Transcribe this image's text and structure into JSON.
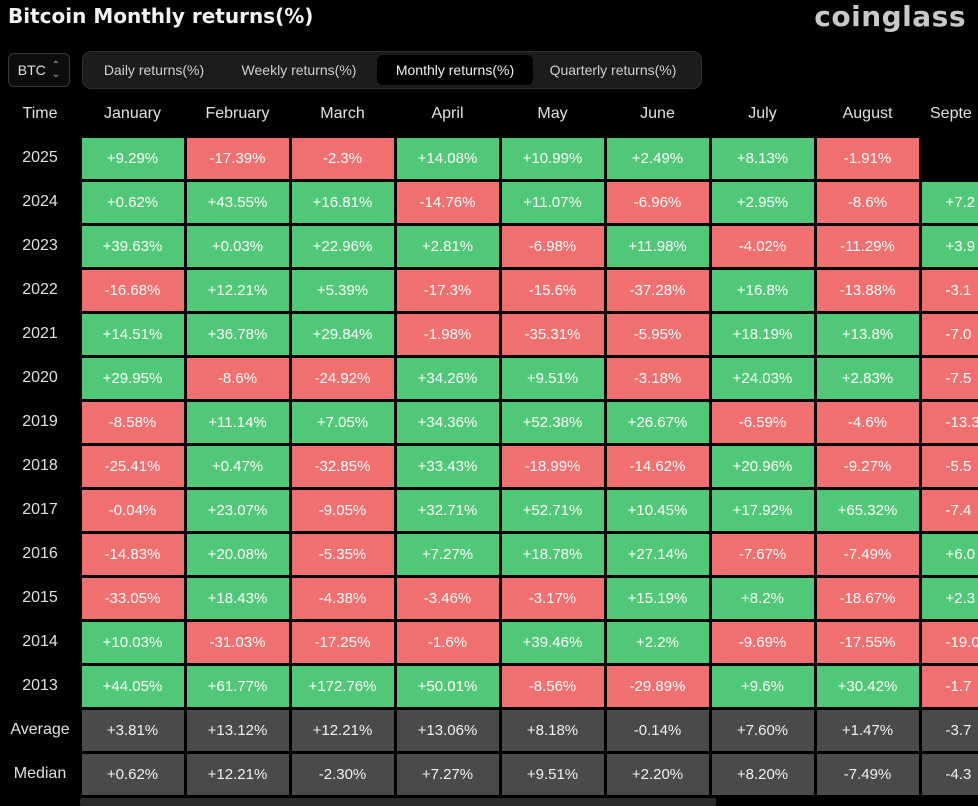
{
  "page": {
    "title": "Bitcoin Monthly returns(%)",
    "brand": "coinglass"
  },
  "coin_select": {
    "value": "BTC",
    "icon": "chevron-up-down-icon"
  },
  "tabs": [
    {
      "label": "Daily returns(%)",
      "active": false
    },
    {
      "label": "Weekly returns(%)",
      "active": false
    },
    {
      "label": "Monthly returns(%)",
      "active": true
    },
    {
      "label": "Quarterly returns(%)",
      "active": false
    }
  ],
  "table": {
    "time_header": "Time",
    "months": [
      "January",
      "February",
      "March",
      "April",
      "May",
      "June",
      "July",
      "August",
      "Septe"
    ],
    "rows": [
      {
        "year": "2025",
        "values": [
          "+9.29%",
          "-17.39%",
          "-2.3%",
          "+14.08%",
          "+10.99%",
          "+2.49%",
          "+8.13%",
          "-1.91%",
          ""
        ]
      },
      {
        "year": "2024",
        "values": [
          "+0.62%",
          "+43.55%",
          "+16.81%",
          "-14.76%",
          "+11.07%",
          "-6.96%",
          "+2.95%",
          "-8.6%",
          "+7.2"
        ]
      },
      {
        "year": "2023",
        "values": [
          "+39.63%",
          "+0.03%",
          "+22.96%",
          "+2.81%",
          "-6.98%",
          "+11.98%",
          "-4.02%",
          "-11.29%",
          "+3.9"
        ]
      },
      {
        "year": "2022",
        "values": [
          "-16.68%",
          "+12.21%",
          "+5.39%",
          "-17.3%",
          "-15.6%",
          "-37.28%",
          "+16.8%",
          "-13.88%",
          "-3.1"
        ]
      },
      {
        "year": "2021",
        "values": [
          "+14.51%",
          "+36.78%",
          "+29.84%",
          "-1.98%",
          "-35.31%",
          "-5.95%",
          "+18.19%",
          "+13.8%",
          "-7.0"
        ]
      },
      {
        "year": "2020",
        "values": [
          "+29.95%",
          "-8.6%",
          "-24.92%",
          "+34.26%",
          "+9.51%",
          "-3.18%",
          "+24.03%",
          "+2.83%",
          "-7.5"
        ]
      },
      {
        "year": "2019",
        "values": [
          "-8.58%",
          "+11.14%",
          "+7.05%",
          "+34.36%",
          "+52.38%",
          "+26.67%",
          "-6.59%",
          "-4.6%",
          "-13.3"
        ]
      },
      {
        "year": "2018",
        "values": [
          "-25.41%",
          "+0.47%",
          "-32.85%",
          "+33.43%",
          "-18.99%",
          "-14.62%",
          "+20.96%",
          "-9.27%",
          "-5.5"
        ]
      },
      {
        "year": "2017",
        "values": [
          "-0.04%",
          "+23.07%",
          "-9.05%",
          "+32.71%",
          "+52.71%",
          "+10.45%",
          "+17.92%",
          "+65.32%",
          "-7.4"
        ]
      },
      {
        "year": "2016",
        "values": [
          "-14.83%",
          "+20.08%",
          "-5.35%",
          "+7.27%",
          "+18.78%",
          "+27.14%",
          "-7.67%",
          "-7.49%",
          "+6.0"
        ]
      },
      {
        "year": "2015",
        "values": [
          "-33.05%",
          "+18.43%",
          "-4.38%",
          "-3.46%",
          "-3.17%",
          "+15.19%",
          "+8.2%",
          "-18.67%",
          "+2.3"
        ]
      },
      {
        "year": "2014",
        "values": [
          "+10.03%",
          "-31.03%",
          "-17.25%",
          "-1.6%",
          "+39.46%",
          "+2.2%",
          "-9.69%",
          "-17.55%",
          "-19.0"
        ]
      },
      {
        "year": "2013",
        "values": [
          "+44.05%",
          "+61.77%",
          "+172.76%",
          "+50.01%",
          "-8.56%",
          "-29.89%",
          "+9.6%",
          "+30.42%",
          "-1.7"
        ]
      }
    ],
    "stats": [
      {
        "label": "Average",
        "values": [
          "+3.81%",
          "+13.12%",
          "+12.21%",
          "+13.06%",
          "+8.18%",
          "-0.14%",
          "+7.60%",
          "+1.47%",
          "-3.7"
        ]
      },
      {
        "label": "Median",
        "values": [
          "+0.62%",
          "+12.21%",
          "-2.30%",
          "+7.27%",
          "+9.51%",
          "+2.20%",
          "+8.20%",
          "-7.49%",
          "-4.3"
        ]
      }
    ]
  },
  "colors": {
    "positive": "#50c878",
    "negative": "#f07070",
    "stat": "#4a4a4a",
    "background": "#000000"
  }
}
